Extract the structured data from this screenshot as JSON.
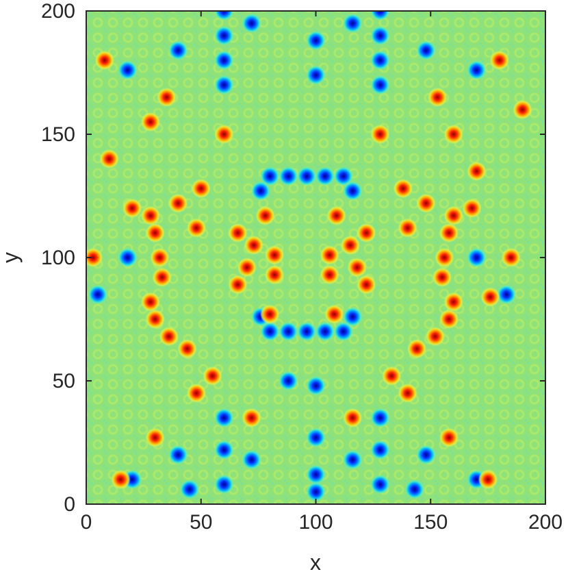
{
  "chart_data": {
    "type": "heatmap",
    "title": "",
    "xlabel": "x",
    "ylabel": "y",
    "xlim": [
      0,
      200
    ],
    "ylim": [
      0,
      200
    ],
    "xticks": [
      "0",
      "50",
      "100",
      "150",
      "200"
    ],
    "yticks": [
      "0",
      "50",
      "100",
      "150",
      "200"
    ],
    "colormap": "jet",
    "background_color": "#8fe27a",
    "grid": false,
    "colorbar": false,
    "red_spots": [
      [
        66,
        110
      ],
      [
        78,
        117
      ],
      [
        109,
        117
      ],
      [
        122,
        110
      ],
      [
        70,
        96
      ],
      [
        118,
        96
      ],
      [
        73,
        105
      ],
      [
        115,
        105
      ],
      [
        82,
        101
      ],
      [
        106,
        101
      ],
      [
        82,
        93
      ],
      [
        106,
        93
      ],
      [
        66,
        89
      ],
      [
        122,
        89
      ],
      [
        80,
        77
      ],
      [
        108,
        77
      ],
      [
        28,
        117
      ],
      [
        30,
        110
      ],
      [
        32,
        100
      ],
      [
        33,
        92
      ],
      [
        28,
        82
      ],
      [
        30,
        75
      ],
      [
        36,
        68
      ],
      [
        44,
        63
      ],
      [
        20,
        120
      ],
      [
        40,
        122
      ],
      [
        50,
        128
      ],
      [
        48,
        112
      ],
      [
        160,
        117
      ],
      [
        158,
        110
      ],
      [
        156,
        100
      ],
      [
        155,
        92
      ],
      [
        160,
        82
      ],
      [
        158,
        75
      ],
      [
        152,
        68
      ],
      [
        144,
        63
      ],
      [
        168,
        120
      ],
      [
        148,
        122
      ],
      [
        138,
        128
      ],
      [
        140,
        112
      ],
      [
        55,
        52
      ],
      [
        133,
        52
      ],
      [
        72,
        35
      ],
      [
        116,
        35
      ],
      [
        30,
        27
      ],
      [
        158,
        27
      ],
      [
        15,
        10
      ],
      [
        175,
        10
      ],
      [
        170,
        135
      ],
      [
        160,
        150
      ],
      [
        10,
        140
      ],
      [
        28,
        155
      ],
      [
        60,
        150
      ],
      [
        128,
        150
      ],
      [
        35,
        165
      ],
      [
        153,
        165
      ],
      [
        8,
        180
      ],
      [
        180,
        180
      ],
      [
        190,
        160
      ],
      [
        185,
        100
      ],
      [
        3,
        100
      ],
      [
        48,
        45
      ],
      [
        140,
        45
      ],
      [
        176,
        84
      ]
    ],
    "blue_spots": [
      [
        80,
        133
      ],
      [
        88,
        133
      ],
      [
        96,
        133
      ],
      [
        104,
        133
      ],
      [
        112,
        133
      ],
      [
        76,
        127
      ],
      [
        116,
        127
      ],
      [
        80,
        70
      ],
      [
        88,
        70
      ],
      [
        96,
        70
      ],
      [
        104,
        70
      ],
      [
        112,
        70
      ],
      [
        76,
        76
      ],
      [
        116,
        76
      ],
      [
        18,
        100
      ],
      [
        170,
        100
      ],
      [
        60,
        200
      ],
      [
        60,
        190
      ],
      [
        60,
        180
      ],
      [
        60,
        170
      ],
      [
        128,
        200
      ],
      [
        128,
        190
      ],
      [
        128,
        180
      ],
      [
        128,
        170
      ],
      [
        72,
        195
      ],
      [
        116,
        195
      ],
      [
        100,
        188
      ],
      [
        100,
        174
      ],
      [
        40,
        184
      ],
      [
        148,
        184
      ],
      [
        18,
        176
      ],
      [
        170,
        176
      ],
      [
        60,
        35
      ],
      [
        60,
        22
      ],
      [
        60,
        8
      ],
      [
        128,
        35
      ],
      [
        128,
        22
      ],
      [
        128,
        8
      ],
      [
        72,
        18
      ],
      [
        116,
        18
      ],
      [
        100,
        27
      ],
      [
        100,
        12
      ],
      [
        100,
        5
      ],
      [
        40,
        20
      ],
      [
        148,
        20
      ],
      [
        20,
        10
      ],
      [
        170,
        10
      ],
      [
        45,
        6
      ],
      [
        143,
        6
      ],
      [
        88,
        50
      ],
      [
        100,
        48
      ],
      [
        5,
        85
      ],
      [
        183,
        85
      ]
    ]
  }
}
